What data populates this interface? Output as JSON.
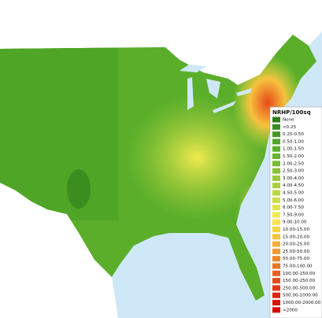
{
  "legend": {
    "title": "NRHP/100sq",
    "items": [
      {
        "label": "None",
        "color": "#2e7d1a"
      },
      {
        "label": "<0.25",
        "color": "#3a8a1e"
      },
      {
        "label": "0.25-0.50",
        "color": "#459822"
      },
      {
        "label": "0.50-1.00",
        "color": "#4fa526"
      },
      {
        "label": "1.00-1.50",
        "color": "#5aae2a"
      },
      {
        "label": "1.50-2.00",
        "color": "#68b52e"
      },
      {
        "label": "2.00-2.50",
        "color": "#78bb32"
      },
      {
        "label": "2.50-3.00",
        "color": "#88c236"
      },
      {
        "label": "3.00-4.00",
        "color": "#99c83a"
      },
      {
        "label": "4.00-4.50",
        "color": "#aacf3e"
      },
      {
        "label": "4.50-5.00",
        "color": "#bcd642"
      },
      {
        "label": "5.00-6.00",
        "color": "#cedd46"
      },
      {
        "label": "6.00-7.50",
        "color": "#e0e44a"
      },
      {
        "label": "7.50-9.00",
        "color": "#f0ea4e"
      },
      {
        "label": "9.00-10.00",
        "color": "#f7e24a"
      },
      {
        "label": "10.00-15.00",
        "color": "#f7d444"
      },
      {
        "label": "15.00-20.00",
        "color": "#f6c23e"
      },
      {
        "label": "20.00-25.00",
        "color": "#f4ae38"
      },
      {
        "label": "25.00-50.00",
        "color": "#f29a32"
      },
      {
        "label": "50.00-75.00",
        "color": "#ef862c"
      },
      {
        "label": "75.00-100.00",
        "color": "#ec7226"
      },
      {
        "label": "100.00-150.00",
        "color": "#e95e20"
      },
      {
        "label": "150.00-250.00",
        "color": "#e64a1a"
      },
      {
        "label": "250.00-500.00",
        "color": "#e33614"
      },
      {
        "label": "500.00-1000.00",
        "color": "#df240f"
      },
      {
        "label": "1000.00-2000.00",
        "color": "#db140a"
      },
      {
        "label": ">2000",
        "color": "#d70505"
      }
    ]
  }
}
